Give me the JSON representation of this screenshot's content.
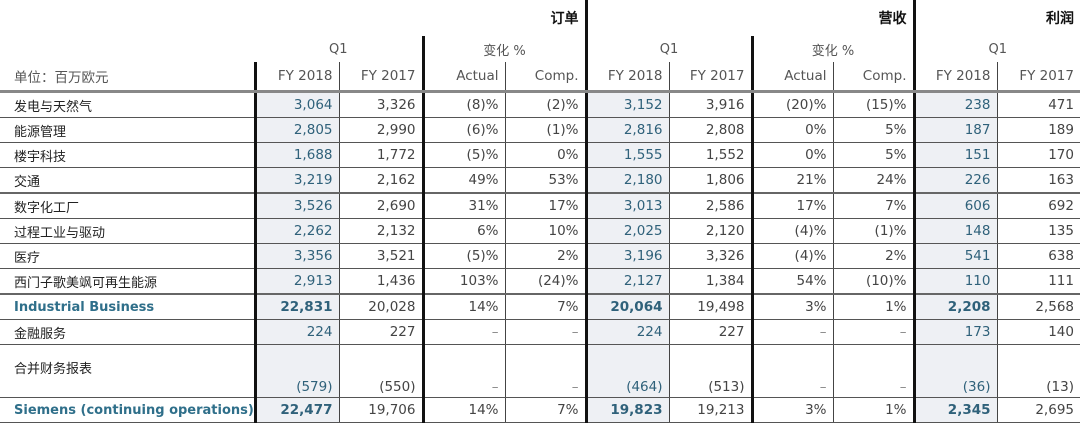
{
  "groups": {
    "orders": "订单",
    "revenue": "营收",
    "profit": "利润"
  },
  "subgroups": {
    "q1": "Q1",
    "change": "变化 %"
  },
  "unit_label": "单位：百万欧元",
  "columns": [
    "FY 2018",
    "FY 2017",
    "Actual",
    "Comp.",
    "FY 2018",
    "FY 2017",
    "Actual",
    "Comp.",
    "FY 2018",
    "FY 2017"
  ],
  "colors": {
    "fy2018_text": "#2f617a",
    "fy2018_bg": "#eef0f4",
    "total_label": "#2f6f8a"
  },
  "rows": [
    {
      "label": "发电与天然气",
      "values": [
        "3,064",
        "3,326",
        "(8)%",
        "(2)%",
        "3,152",
        "3,916",
        "(20)%",
        "(15)%",
        "238",
        "471"
      ]
    },
    {
      "label": "能源管理",
      "values": [
        "2,805",
        "2,990",
        "(6)%",
        "(1)%",
        "2,816",
        "2,808",
        "0%",
        "5%",
        "187",
        "189"
      ]
    },
    {
      "label": "楼宇科技",
      "values": [
        "1,688",
        "1,772",
        "(5)%",
        "0%",
        "1,555",
        "1,552",
        "0%",
        "5%",
        "151",
        "170"
      ]
    },
    {
      "label": "交通",
      "values": [
        "3,219",
        "2,162",
        "49%",
        "53%",
        "2,180",
        "1,806",
        "21%",
        "24%",
        "226",
        "163"
      ]
    },
    {
      "label": "数字化工厂",
      "values": [
        "3,526",
        "2,690",
        "31%",
        "17%",
        "3,013",
        "2,586",
        "17%",
        "7%",
        "606",
        "692"
      ]
    },
    {
      "label": "过程工业与驱动",
      "values": [
        "2,262",
        "2,132",
        "6%",
        "10%",
        "2,025",
        "2,120",
        "(4)%",
        "(1)%",
        "148",
        "135"
      ]
    },
    {
      "label": "医疗",
      "values": [
        "3,356",
        "3,521",
        "(5)%",
        "2%",
        "3,196",
        "3,326",
        "(4)%",
        "2%",
        "541",
        "638"
      ]
    },
    {
      "label": "西门子歌美飒可再生能源",
      "values": [
        "2,913",
        "1,436",
        "103%",
        "(24)%",
        "2,127",
        "1,384",
        "54%",
        "(10)%",
        "110",
        "111"
      ]
    },
    {
      "label": "Industrial Business",
      "values": [
        "22,831",
        "20,028",
        "14%",
        "7%",
        "20,064",
        "19,498",
        "3%",
        "1%",
        "2,208",
        "2,568"
      ]
    },
    {
      "label": "金融服务",
      "values": [
        "224",
        "227",
        "–",
        "–",
        "224",
        "227",
        "–",
        "–",
        "173",
        "140"
      ]
    },
    {
      "label": "合并财务报表",
      "values": [
        "(579)",
        "(550)",
        "–",
        "–",
        "(464)",
        "(513)",
        "–",
        "–",
        "(36)",
        "(13)"
      ]
    },
    {
      "label": "Siemens (continuing operations)",
      "values": [
        "22,477",
        "19,706",
        "14%",
        "7%",
        "19,823",
        "19,213",
        "3%",
        "1%",
        "2,345",
        "2,695"
      ]
    }
  ]
}
